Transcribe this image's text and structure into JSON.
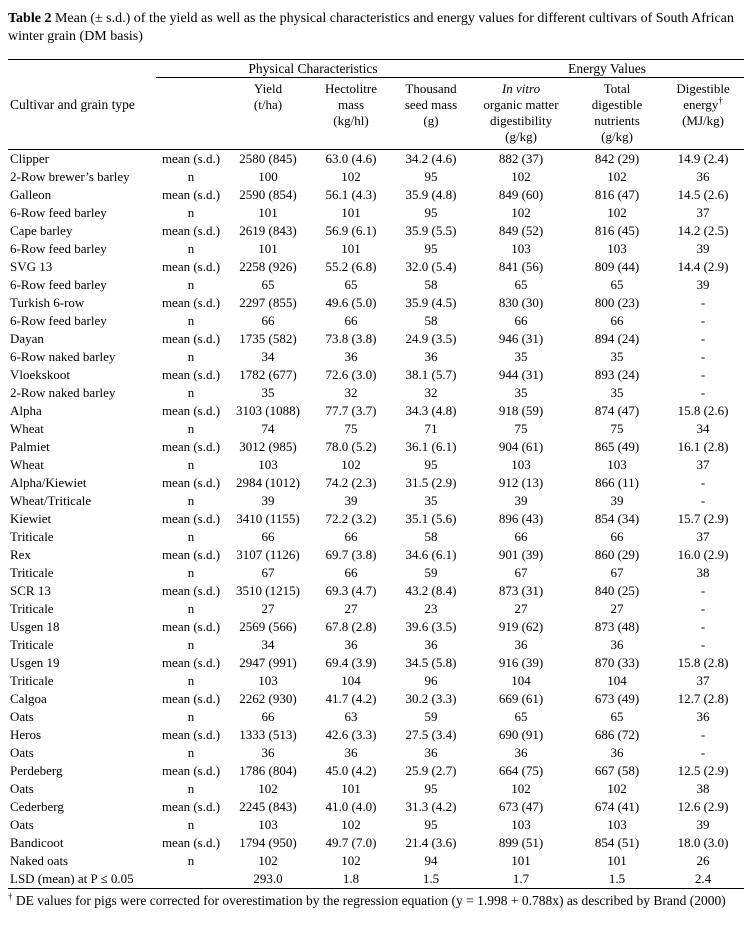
{
  "colors": {
    "text": "#000000",
    "background": "#ffffff",
    "rule": "#000000"
  },
  "title": {
    "label": "Table 2",
    "text": " Mean (± s.d.) of the yield as well as the physical characteristics and energy values for different cultivars of South African winter grain (DM basis)"
  },
  "table": {
    "row_header": "Cultivar and grain type",
    "group_headers": [
      {
        "label": "Physical Characteristics",
        "span": 4
      },
      {
        "label": "Energy Values",
        "span": 3
      }
    ],
    "columns": [
      {
        "id": "yield",
        "lines": [
          "Yield",
          "(t/ha)"
        ]
      },
      {
        "id": "hectolitre-mass",
        "lines": [
          "Hectolitre",
          "mass",
          "(kg/hl)"
        ]
      },
      {
        "id": "thousand-seed-mass",
        "lines": [
          "Thousand",
          "seed mass",
          "(g)"
        ]
      },
      {
        "id": "invitro-omd",
        "lines": [
          "In vitro",
          "organic matter",
          "digestibility",
          "(g/kg)"
        ],
        "italic_line": 0
      },
      {
        "id": "total-digestible-nutrients",
        "lines": [
          "Total",
          "digestible",
          "nutrients",
          "(g/kg)"
        ]
      },
      {
        "id": "digestible-energy",
        "lines": [
          "Digestible",
          "energy",
          "(MJ/kg)"
        ],
        "sup": "†",
        "sup_line": 1
      }
    ],
    "stat_labels": {
      "mean": "mean (s.d.)",
      "n": "n"
    },
    "rows": [
      {
        "cultivar": "Clipper",
        "stat": "mean (s.d.)",
        "values": [
          "2580 (845)",
          "63.0 (4.6)",
          "34.2 (4.6)",
          "882 (37)",
          "842 (29)",
          "14.9 (2.4)"
        ]
      },
      {
        "cultivar": "2-Row brewer’s barley",
        "stat": "n",
        "values": [
          "100",
          "102",
          "95",
          "102",
          "102",
          "36"
        ]
      },
      {
        "cultivar": "Galleon",
        "stat": "mean (s.d.)",
        "values": [
          "2590 (854)",
          "56.1 (4.3)",
          "35.9 (4.8)",
          "849 (60)",
          "816 (47)",
          "14.5 (2.6)"
        ]
      },
      {
        "cultivar": "6-Row feed barley",
        "stat": "n",
        "values": [
          "101",
          "101",
          "95",
          "102",
          "102",
          "37"
        ]
      },
      {
        "cultivar": "Cape barley",
        "stat": "mean (s.d.)",
        "values": [
          "2619 (843)",
          "56.9 (6.1)",
          "35.9 (5.5)",
          "849 (52)",
          "816 (45)",
          "14.2 (2.5)"
        ]
      },
      {
        "cultivar": "6-Row feed barley",
        "stat": "n",
        "values": [
          "101",
          "101",
          "95",
          "103",
          "103",
          "39"
        ]
      },
      {
        "cultivar": "SVG 13",
        "stat": "mean (s.d.)",
        "values": [
          "2258 (926)",
          "55.2 (6.8)",
          "32.0 (5.4)",
          "841 (56)",
          "809 (44)",
          "14.4 (2.9)"
        ]
      },
      {
        "cultivar": "6-Row feed barley",
        "stat": "n",
        "values": [
          "65",
          "65",
          "58",
          "65",
          "65",
          "39"
        ]
      },
      {
        "cultivar": "Turkish 6-row",
        "stat": "mean (s.d.)",
        "values": [
          "2297 (855)",
          "49.6 (5.0)",
          "35.9 (4.5)",
          "830 (30)",
          "800 (23)",
          "-"
        ]
      },
      {
        "cultivar": "6-Row feed barley",
        "stat": "n",
        "values": [
          "66",
          "66",
          "58",
          "66",
          "66",
          "-"
        ]
      },
      {
        "cultivar": "Dayan",
        "stat": "mean (s.d.)",
        "values": [
          "1735 (582)",
          "73.8 (3.8)",
          "24.9 (3.5)",
          "946 (31)",
          "894 (24)",
          "-"
        ]
      },
      {
        "cultivar": "6-Row naked barley",
        "stat": "n",
        "values": [
          "34",
          "36",
          "36",
          "35",
          "35",
          "-"
        ]
      },
      {
        "cultivar": "Vloekskoot",
        "stat": "mean (s.d.)",
        "values": [
          "1782 (677)",
          "72.6 (3.0)",
          "38.1 (5.7)",
          "944 (31)",
          "893 (24)",
          "-"
        ]
      },
      {
        "cultivar": "2-Row naked barley",
        "stat": "n",
        "values": [
          "35",
          "32",
          "32",
          "35",
          "35",
          "-"
        ]
      },
      {
        "cultivar": "Alpha",
        "stat": "mean (s.d.)",
        "values": [
          "3103 (1088)",
          "77.7 (3.7)",
          "34.3 (4.8)",
          "918 (59)",
          "874 (47)",
          "15.8 (2.6)"
        ]
      },
      {
        "cultivar": "Wheat",
        "stat": "n",
        "values": [
          "74",
          "75",
          "71",
          "75",
          "75",
          "34"
        ]
      },
      {
        "cultivar": "Palmiet",
        "stat": "mean (s.d.)",
        "values": [
          "3012 (985)",
          "78.0 (5.2)",
          "36.1 (6.1)",
          "904 (61)",
          "865 (49)",
          "16.1 (2.8)"
        ]
      },
      {
        "cultivar": "Wheat",
        "stat": "n",
        "values": [
          "103",
          "102",
          "95",
          "103",
          "103",
          "37"
        ]
      },
      {
        "cultivar": "Alpha/Kiewiet",
        "stat": "mean (s.d.)",
        "values": [
          "2984 (1012)",
          "74.2 (2.3)",
          "31.5 (2.9)",
          "912 (13)",
          "866 (11)",
          "-"
        ]
      },
      {
        "cultivar": "Wheat/Triticale",
        "stat": "n",
        "values": [
          "39",
          "39",
          "35",
          "39",
          "39",
          "-"
        ]
      },
      {
        "cultivar": "Kiewiet",
        "stat": "mean (s.d.)",
        "values": [
          "3410 (1155)",
          "72.2 (3.2)",
          "35.1 (5.6)",
          "896 (43)",
          "854 (34)",
          "15.7 (2.9)"
        ]
      },
      {
        "cultivar": "Triticale",
        "stat": "n",
        "values": [
          "66",
          "66",
          "58",
          "66",
          "66",
          "37"
        ]
      },
      {
        "cultivar": "Rex",
        "stat": "mean (s.d.)",
        "values": [
          "3107 (1126)",
          "69.7 (3.8)",
          "34.6 (6.1)",
          "901 (39)",
          "860 (29)",
          "16.0 (2.9)"
        ]
      },
      {
        "cultivar": "Triticale",
        "stat": "n",
        "values": [
          "67",
          "66",
          "59",
          "67",
          "67",
          "38"
        ]
      },
      {
        "cultivar": "SCR 13",
        "stat": "mean (s.d.)",
        "values": [
          "3510 (1215)",
          "69.3 (4.7)",
          "43.2 (8.4)",
          "873 (31)",
          "840 (25)",
          "-"
        ]
      },
      {
        "cultivar": "Triticale",
        "stat": "n",
        "values": [
          "27",
          "27",
          "23",
          "27",
          "27",
          "-"
        ]
      },
      {
        "cultivar": "Usgen 18",
        "stat": "mean (s.d.)",
        "values": [
          "2569 (566)",
          "67.8 (2.8)",
          "39.6 (3.5)",
          "919 (62)",
          "873 (48)",
          "-"
        ]
      },
      {
        "cultivar": "Triticale",
        "stat": "n",
        "values": [
          "34",
          "36",
          "36",
          "36",
          "36",
          "-"
        ]
      },
      {
        "cultivar": "Usgen 19",
        "stat": "mean (s.d.)",
        "values": [
          "2947 (991)",
          "69.4 (3.9)",
          "34.5 (5.8)",
          "916 (39)",
          "870 (33)",
          "15.8 (2.8)"
        ]
      },
      {
        "cultivar": "Triticale",
        "stat": "n",
        "values": [
          "103",
          "104",
          "96",
          "104",
          "104",
          "37"
        ]
      },
      {
        "cultivar": "Calgoa",
        "stat": "mean (s.d.)",
        "values": [
          "2262 (930)",
          "41.7 (4.2)",
          "30.2 (3.3)",
          "669 (61)",
          "673 (49)",
          "12.7 (2.8)"
        ]
      },
      {
        "cultivar": "Oats",
        "stat": "n",
        "values": [
          "66",
          "63",
          "59",
          "65",
          "65",
          "36"
        ]
      },
      {
        "cultivar": "Heros",
        "stat": "mean (s.d.)",
        "values": [
          "1333 (513)",
          "42.6 (3.3)",
          "27.5 (3.4)",
          "690 (91)",
          "686 (72)",
          "-"
        ]
      },
      {
        "cultivar": "Oats",
        "stat": "n",
        "values": [
          "36",
          "36",
          "36",
          "36",
          "36",
          "-"
        ]
      },
      {
        "cultivar": "Perdeberg",
        "stat": "mean (s.d.)",
        "values": [
          "1786 (804)",
          "45.0 (4.2)",
          "25.9 (2.7)",
          "664 (75)",
          "667 (58)",
          "12.5 (2.9)"
        ]
      },
      {
        "cultivar": "Oats",
        "stat": "n",
        "values": [
          "102",
          "101",
          "95",
          "102",
          "102",
          "38"
        ]
      },
      {
        "cultivar": "Cederberg",
        "stat": "mean (s.d.)",
        "values": [
          "2245 (843)",
          "41.0 (4.0)",
          "31.3 (4.2)",
          "673 (47)",
          "674 (41)",
          "12.6 (2.9)"
        ]
      },
      {
        "cultivar": "Oats",
        "stat": "n",
        "values": [
          "103",
          "102",
          "95",
          "103",
          "103",
          "39"
        ]
      },
      {
        "cultivar": "Bandicoot",
        "stat": "mean (s.d.)",
        "values": [
          "1794 (950)",
          "49.7 (7.0)",
          "21.4 (3.6)",
          "899 (51)",
          "854 (51)",
          "18.0 (3.0)"
        ]
      },
      {
        "cultivar": "Naked oats",
        "stat": "n",
        "values": [
          "102",
          "102",
          "94",
          "101",
          "101",
          "26"
        ]
      },
      {
        "cultivar": "LSD (mean) at P ≤ 0.05",
        "stat": "",
        "values": [
          "293.0",
          "1.8",
          "1.5",
          "1.7",
          "1.5",
          "2.4"
        ],
        "lsd": true
      }
    ]
  },
  "footnote": {
    "dagger": "†",
    "text": " DE values for pigs were corrected for overestimation by the regression equation (y = 1.998 + 0.788x) as described by Brand (2000)"
  }
}
